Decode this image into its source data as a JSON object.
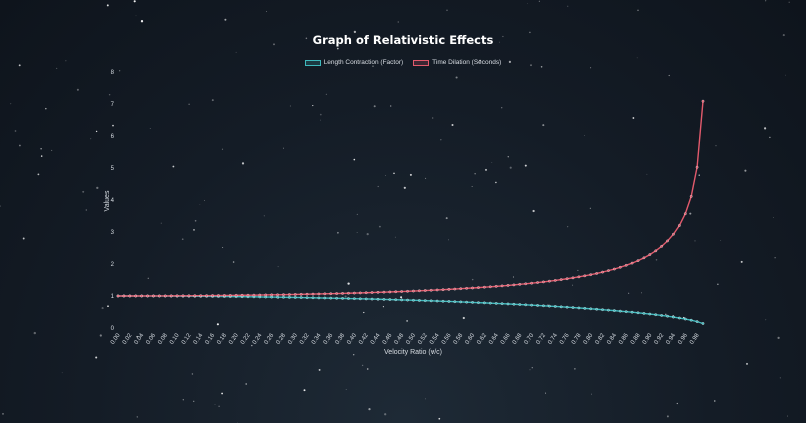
{
  "chart_data": {
    "type": "line",
    "title": "Graph of Relativistic Effects",
    "xlabel": "Velocity Ratio (v/c)",
    "ylabel": "Values",
    "ylim": [
      0,
      8
    ],
    "yticks": [
      0,
      1,
      2,
      3,
      4,
      5,
      6,
      7,
      8
    ],
    "legend_position": "top",
    "x": [
      0.0,
      0.01,
      0.02,
      0.03,
      0.04,
      0.05,
      0.06,
      0.07,
      0.08,
      0.09,
      0.1,
      0.11,
      0.12,
      0.13,
      0.14,
      0.15,
      0.16,
      0.17,
      0.18,
      0.19,
      0.2,
      0.21,
      0.22,
      0.23,
      0.24,
      0.25,
      0.26,
      0.27,
      0.28,
      0.29,
      0.3,
      0.31,
      0.32,
      0.33,
      0.34,
      0.35,
      0.36,
      0.37,
      0.38,
      0.39,
      0.4,
      0.41,
      0.42,
      0.43,
      0.44,
      0.45,
      0.46,
      0.47,
      0.48,
      0.49,
      0.5,
      0.51,
      0.52,
      0.53,
      0.54,
      0.55,
      0.56,
      0.57,
      0.58,
      0.59,
      0.6,
      0.61,
      0.62,
      0.63,
      0.64,
      0.65,
      0.66,
      0.67,
      0.68,
      0.69,
      0.7,
      0.71,
      0.72,
      0.73,
      0.74,
      0.75,
      0.76,
      0.77,
      0.78,
      0.79,
      0.8,
      0.81,
      0.82,
      0.83,
      0.84,
      0.85,
      0.86,
      0.87,
      0.88,
      0.89,
      0.9,
      0.91,
      0.92,
      0.93,
      0.94,
      0.95,
      0.96,
      0.97,
      0.98,
      0.99
    ],
    "xtick_labels": [
      "0.00",
      "0.02",
      "0.04",
      "0.06",
      "0.08",
      "0.10",
      "0.12",
      "0.14",
      "0.16",
      "0.18",
      "0.20",
      "0.22",
      "0.24",
      "0.26",
      "0.28",
      "0.30",
      "0.32",
      "0.34",
      "0.36",
      "0.38",
      "0.40",
      "0.42",
      "0.44",
      "0.46",
      "0.48",
      "0.50",
      "0.52",
      "0.54",
      "0.56",
      "0.58",
      "0.60",
      "0.62",
      "0.64",
      "0.66",
      "0.68",
      "0.70",
      "0.72",
      "0.74",
      "0.76",
      "0.78",
      "0.80",
      "0.82",
      "0.84",
      "0.86",
      "0.88",
      "0.90",
      "0.92",
      "0.94",
      "0.96",
      "0.98"
    ],
    "series": [
      {
        "name": "Length Contraction (Factor)",
        "color": "#3fb9bd",
        "values": [
          1.0,
          1.0,
          1.0,
          1.0,
          0.999,
          0.999,
          0.998,
          0.998,
          0.997,
          0.996,
          0.995,
          0.994,
          0.993,
          0.992,
          0.99,
          0.989,
          0.987,
          0.985,
          0.984,
          0.982,
          0.98,
          0.978,
          0.976,
          0.973,
          0.971,
          0.968,
          0.966,
          0.963,
          0.96,
          0.957,
          0.954,
          0.951,
          0.947,
          0.944,
          0.94,
          0.937,
          0.933,
          0.929,
          0.925,
          0.921,
          0.917,
          0.912,
          0.908,
          0.903,
          0.898,
          0.893,
          0.888,
          0.883,
          0.877,
          0.872,
          0.866,
          0.86,
          0.854,
          0.848,
          0.842,
          0.835,
          0.829,
          0.822,
          0.815,
          0.807,
          0.8,
          0.792,
          0.785,
          0.777,
          0.768,
          0.76,
          0.751,
          0.742,
          0.733,
          0.724,
          0.714,
          0.704,
          0.694,
          0.683,
          0.673,
          0.661,
          0.65,
          0.638,
          0.626,
          0.613,
          0.6,
          0.586,
          0.572,
          0.558,
          0.543,
          0.527,
          0.51,
          0.493,
          0.475,
          0.456,
          0.436,
          0.415,
          0.392,
          0.368,
          0.341,
          0.312,
          0.28,
          0.243,
          0.199,
          0.141
        ]
      },
      {
        "name": "Time Dilation (Seconds)",
        "color": "#e25a6c",
        "values": [
          1.0,
          1.0,
          1.0,
          1.0,
          1.001,
          1.001,
          1.002,
          1.002,
          1.003,
          1.004,
          1.005,
          1.006,
          1.007,
          1.009,
          1.01,
          1.011,
          1.013,
          1.015,
          1.017,
          1.018,
          1.021,
          1.023,
          1.025,
          1.027,
          1.03,
          1.033,
          1.036,
          1.038,
          1.042,
          1.045,
          1.048,
          1.052,
          1.056,
          1.059,
          1.063,
          1.068,
          1.072,
          1.076,
          1.081,
          1.086,
          1.091,
          1.096,
          1.102,
          1.108,
          1.114,
          1.12,
          1.126,
          1.133,
          1.14,
          1.147,
          1.155,
          1.163,
          1.171,
          1.179,
          1.188,
          1.197,
          1.207,
          1.217,
          1.228,
          1.239,
          1.25,
          1.262,
          1.275,
          1.288,
          1.301,
          1.316,
          1.331,
          1.347,
          1.364,
          1.382,
          1.4,
          1.42,
          1.441,
          1.463,
          1.487,
          1.512,
          1.539,
          1.567,
          1.598,
          1.631,
          1.667,
          1.705,
          1.747,
          1.793,
          1.843,
          1.898,
          1.96,
          2.028,
          2.105,
          2.193,
          2.294,
          2.411,
          2.552,
          2.721,
          2.931,
          3.203,
          3.571,
          4.113,
          5.025,
          7.089
        ]
      }
    ]
  }
}
